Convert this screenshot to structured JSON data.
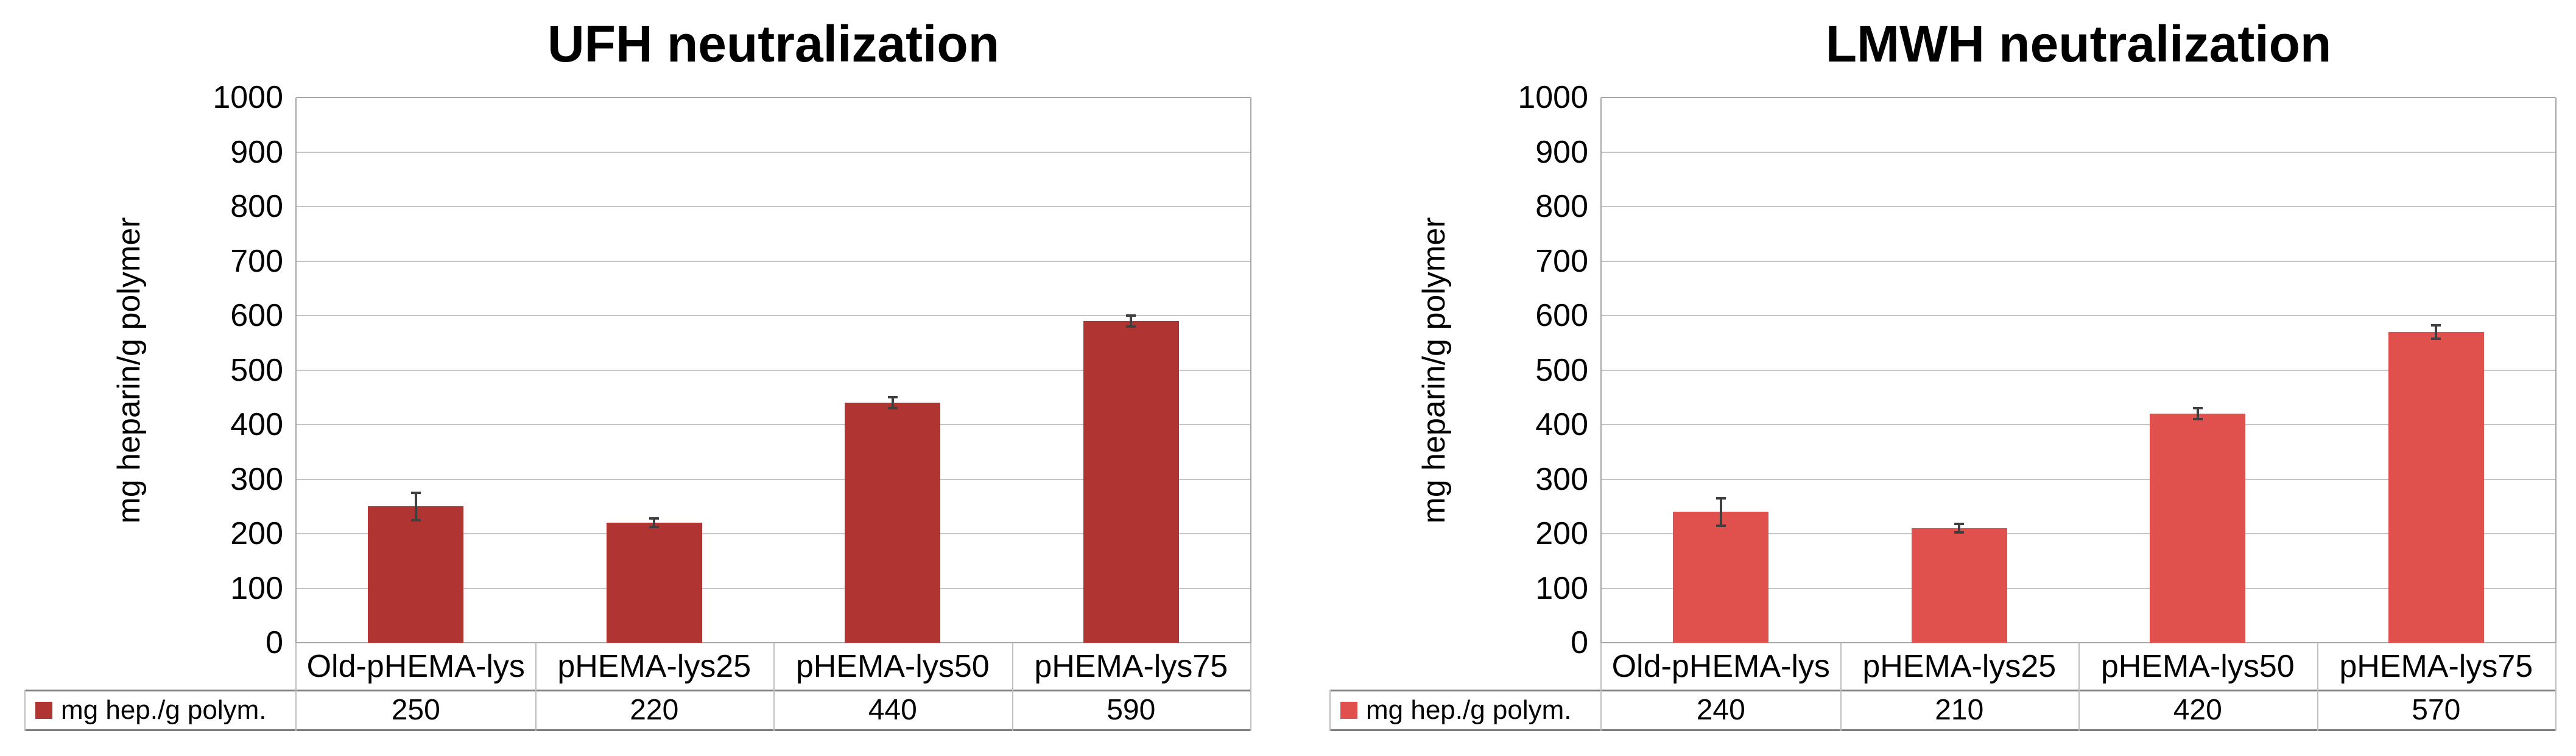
{
  "figure": {
    "background": "#FFFFFF",
    "description": "Two bar charts with data tables comparing heparin neutralization by pHEMA-lysine polymers"
  },
  "style": {
    "axis_line_color": "#A6A6A6",
    "gridline_color": "#C6C6C6",
    "error_bar_color": "#3F3F3F",
    "table_border_light": "#BFBFBF",
    "table_border_heavy": "#808080",
    "text_color": "#000000"
  },
  "chart_data": [
    {
      "type": "bar",
      "title": "UFH neutralization",
      "ylabel": "mg heparin/g polymer",
      "xlabel": "",
      "ylim": [
        0,
        1000
      ],
      "ytick_step": 100,
      "yticks": [
        1000,
        900,
        800,
        700,
        600,
        500,
        400,
        300,
        200,
        100,
        0
      ],
      "grid": true,
      "legend_position": "data-table-left",
      "categories": [
        "Old-pHEMA-lys",
        "pHEMA-lys25",
        "pHEMA-lys50",
        "pHEMA-lys75"
      ],
      "series": [
        {
          "name": "mg hep./g polym.",
          "values": [
            250,
            220,
            440,
            590
          ],
          "errors": [
            25,
            8,
            10,
            10
          ],
          "color": "#B03532"
        }
      ]
    },
    {
      "type": "bar",
      "title": "LMWH neutralization",
      "ylabel": "mg heparin/g polymer",
      "xlabel": "",
      "ylim": [
        0,
        1000
      ],
      "ytick_step": 100,
      "yticks": [
        1000,
        900,
        800,
        700,
        600,
        500,
        400,
        300,
        200,
        100,
        0
      ],
      "grid": true,
      "legend_position": "data-table-left",
      "categories": [
        "Old-pHEMA-lys",
        "pHEMA-lys25",
        "pHEMA-lys50",
        "pHEMA-lys75"
      ],
      "series": [
        {
          "name": "mg hep./g polym.",
          "values": [
            240,
            210,
            420,
            570
          ],
          "errors": [
            25,
            8,
            10,
            12
          ],
          "color": "#E0514E"
        }
      ]
    }
  ]
}
